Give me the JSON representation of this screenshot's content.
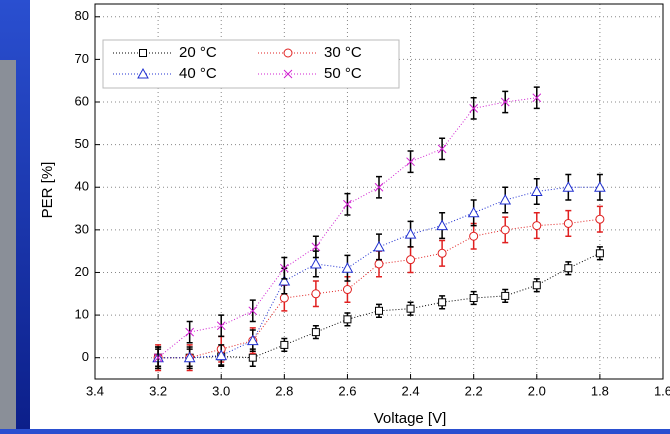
{
  "chart_data": {
    "type": "line",
    "x_label": "Voltage [V]",
    "y_label": "PER [%]",
    "xlim": [
      3.4,
      1.6
    ],
    "ylim": [
      -5,
      83
    ],
    "xticks": [
      3.4,
      3.2,
      {
        "value": 3,
        "label": "3.0"
      },
      2.8,
      2.6,
      2.4,
      2.2,
      {
        "value": 2,
        "label": "2.0"
      },
      1.8,
      1.6
    ],
    "yticks": [
      0,
      10,
      20,
      30,
      40,
      50,
      60,
      70,
      80
    ],
    "grid": true,
    "legend": "upper left",
    "series": [
      {
        "name": "20 °C",
        "color": "#000000",
        "marker": "square",
        "error_color": "#000000",
        "x": [
          3.2,
          3.1,
          3.0,
          2.9,
          2.8,
          2.7,
          2.6,
          2.5,
          2.4,
          2.3,
          2.2,
          2.1,
          2.0,
          1.9,
          1.8
        ],
        "values": [
          0,
          0,
          0.3,
          0,
          3,
          6,
          9,
          11,
          11.5,
          13,
          14,
          14.5,
          17,
          21,
          24.5
        ],
        "errors": [
          2,
          2,
          2,
          2,
          1.5,
          1.5,
          1.5,
          1.5,
          1.5,
          1.5,
          1.5,
          1.5,
          1.5,
          1.5,
          1.5
        ]
      },
      {
        "name": "30 °C",
        "color": "#e02020",
        "marker": "circle",
        "error_color": "#e02020",
        "x": [
          3.2,
          3.1,
          3.0,
          2.9,
          2.8,
          2.7,
          2.6,
          2.5,
          2.4,
          2.3,
          2.2,
          2.1,
          2.0,
          1.9,
          1.8
        ],
        "values": [
          0,
          0,
          2,
          4,
          14,
          15,
          16,
          22,
          23,
          24.5,
          28.5,
          30,
          31,
          31.5,
          32.5
        ],
        "errors": [
          3,
          3,
          3,
          3,
          3,
          3,
          3,
          3,
          3,
          3,
          3,
          3,
          3,
          3,
          3
        ]
      },
      {
        "name": "40 °C",
        "color": "#2030d0",
        "marker": "triangle",
        "error_color": "#000000",
        "x": [
          3.2,
          3.1,
          3.0,
          2.9,
          2.8,
          2.7,
          2.6,
          2.5,
          2.4,
          2.3,
          2.2,
          2.1,
          2.0,
          1.9,
          1.8
        ],
        "values": [
          0,
          0,
          0.5,
          4,
          18,
          22,
          21,
          26,
          29,
          31,
          34,
          37,
          39,
          40,
          40
        ],
        "errors": [
          2.5,
          2.5,
          2.5,
          2.5,
          3,
          3,
          3,
          3,
          3,
          3,
          3,
          3,
          3,
          3,
          3
        ]
      },
      {
        "name": "50 °C",
        "color": "#d020d0",
        "marker": "x",
        "error_color": "#000000",
        "x": [
          3.2,
          3.1,
          3.0,
          2.9,
          2.8,
          2.7,
          2.6,
          2.5,
          2.4,
          2.3,
          2.2,
          2.1,
          2.0
        ],
        "values": [
          0,
          6,
          7.5,
          11,
          21,
          26,
          36,
          40,
          46,
          49,
          58.5,
          60,
          61
        ],
        "errors": [
          2.5,
          2.5,
          2.5,
          2.5,
          2.5,
          2.5,
          2.5,
          2.5,
          2.5,
          2.5,
          2.5,
          2.5,
          2.5
        ]
      }
    ]
  }
}
